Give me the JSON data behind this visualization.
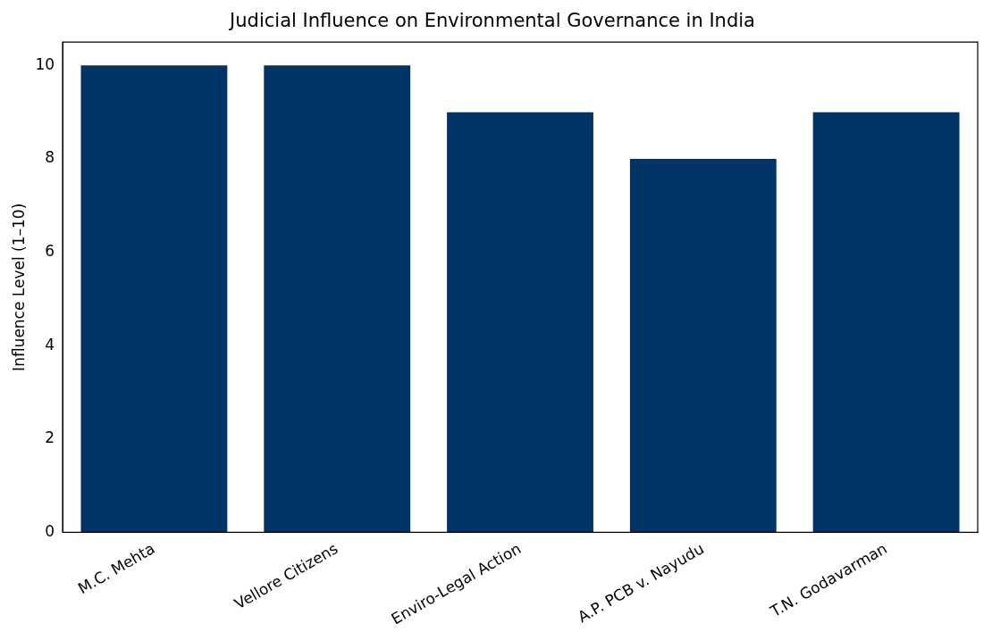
{
  "chart_data": {
    "type": "bar",
    "title": "Judicial Influence on Environmental Governance in India",
    "ylabel": "Influence Level (1–10)",
    "categories": [
      "M.C. Mehta",
      "Vellore Citizens",
      "Enviro-Legal Action",
      "A.P. PCB v. Nayudu",
      "T.N. Godavarman"
    ],
    "values": [
      10,
      10,
      9,
      8,
      9
    ],
    "color": "#003366",
    "ylim": [
      0,
      10.5
    ],
    "yticks": [
      0,
      2,
      4,
      6,
      8,
      10
    ],
    "grid": false,
    "legend": false
  }
}
